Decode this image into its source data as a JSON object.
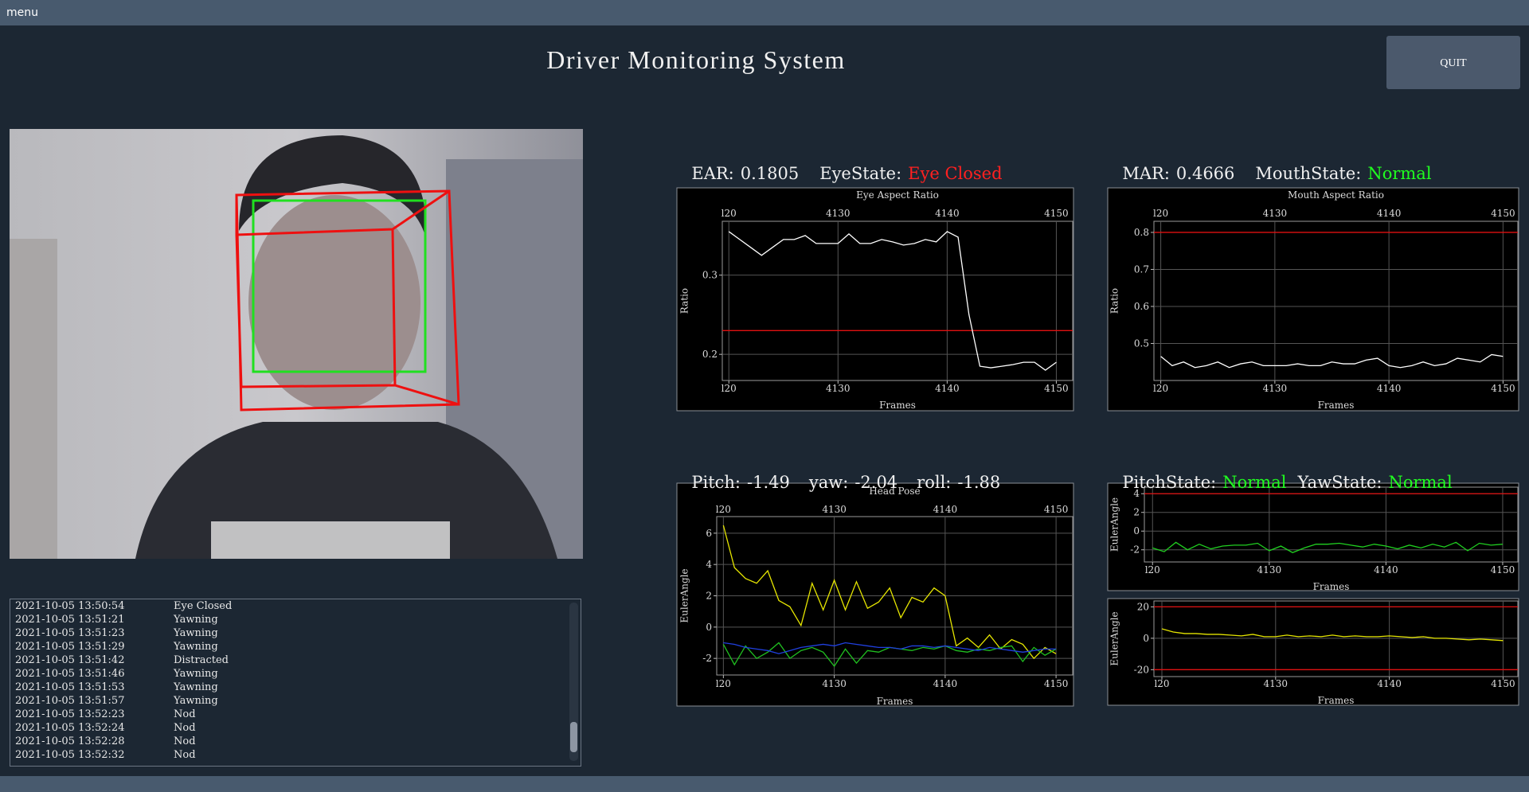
{
  "menu": "menu",
  "header": {
    "title": "Driver Monitoring System",
    "quit_button": "QUIT"
  },
  "eye_status": {
    "ear_label": "EAR:",
    "ear": 0.1805,
    "state_label": "EyeState:",
    "state": "Eye Closed"
  },
  "mouth_status": {
    "mar_label": "MAR:",
    "mar": 0.4666,
    "state_label": "MouthState:",
    "state": "Normal"
  },
  "pose_status": {
    "pitch_label": "Pitch:",
    "pitch": -1.49,
    "yaw_label": "yaw:",
    "yaw": -2.04,
    "roll_label": "roll:",
    "roll": -1.88
  },
  "pose_state": {
    "pitch_state_label": "PitchState:",
    "pitch_state": "Normal",
    "yaw_state_label": "YawState:",
    "yaw_state": "Normal"
  },
  "log": {
    "entries": [
      {
        "time": "2021-10-05 13:50:54",
        "event": "Eye Closed"
      },
      {
        "time": "2021-10-05 13:51:21",
        "event": "Yawning"
      },
      {
        "time": "2021-10-05 13:51:23",
        "event": "Yawning"
      },
      {
        "time": "2021-10-05 13:51:29",
        "event": "Yawning"
      },
      {
        "time": "2021-10-05 13:51:42",
        "event": "Distracted"
      },
      {
        "time": "2021-10-05 13:51:46",
        "event": "Yawning"
      },
      {
        "time": "2021-10-05 13:51:53",
        "event": "Yawning"
      },
      {
        "time": "2021-10-05 13:51:57",
        "event": "Yawning"
      },
      {
        "time": "2021-10-05 13:52:23",
        "event": "Nod"
      },
      {
        "time": "2021-10-05 13:52:24",
        "event": "Nod"
      },
      {
        "time": "2021-10-05 13:52:28",
        "event": "Nod"
      },
      {
        "time": "2021-10-05 13:52:32",
        "event": "Nod"
      }
    ]
  },
  "charts": [
    {
      "type": "line",
      "title": "Eye Aspect Ratio",
      "x_label": "Frames",
      "y_label": "Ratio",
      "xlim": [
        4119.4,
        4151.5
      ],
      "ylim": [
        0.167,
        0.368
      ],
      "xticks": [
        {
          "value": 4120,
          "label": "l20"
        },
        4130,
        4140,
        4150
      ],
      "yticks": [
        0.2,
        0.3
      ],
      "thresholds": [
        0.23
      ],
      "threshold_color": "#e01010",
      "x": [
        4120,
        4121,
        4122,
        4123,
        4124,
        4125,
        4126,
        4127,
        4128,
        4129,
        4130,
        4131,
        4132,
        4133,
        4134,
        4135,
        4136,
        4137,
        4138,
        4139,
        4140,
        4141,
        4142,
        4143,
        4144,
        4145,
        4146,
        4147,
        4148,
        4149,
        4150
      ],
      "series": [
        {
          "color": "#ffffff",
          "values": [
            0.355,
            0.345,
            0.335,
            0.325,
            0.335,
            0.345,
            0.345,
            0.35,
            0.34,
            0.34,
            0.34,
            0.352,
            0.34,
            0.34,
            0.345,
            0.342,
            0.338,
            0.34,
            0.345,
            0.342,
            0.355,
            0.348,
            0.25,
            0.185,
            0.183,
            0.185,
            0.187,
            0.19,
            0.19,
            0.18,
            0.19
          ]
        }
      ]
    },
    {
      "type": "line",
      "title": "Mouth Aspect Ratio",
      "x_label": "Frames",
      "y_label": "Ratio",
      "xlim": [
        4119.4,
        4151.3
      ],
      "ylim": [
        0.4,
        0.83
      ],
      "xticks": [
        {
          "value": 4120,
          "label": "l20"
        },
        4130,
        4140,
        4150
      ],
      "yticks": [
        0.5,
        0.6,
        0.7,
        0.8
      ],
      "thresholds": [
        0.8
      ],
      "threshold_color": "#e01010",
      "x": [
        4120,
        4121,
        4122,
        4123,
        4124,
        4125,
        4126,
        4127,
        4128,
        4129,
        4130,
        4131,
        4132,
        4133,
        4134,
        4135,
        4136,
        4137,
        4138,
        4139,
        4140,
        4141,
        4142,
        4143,
        4144,
        4145,
        4146,
        4147,
        4148,
        4149,
        4150
      ],
      "series": [
        {
          "color": "#ffffff",
          "values": [
            0.465,
            0.44,
            0.45,
            0.435,
            0.44,
            0.45,
            0.435,
            0.445,
            0.45,
            0.44,
            0.44,
            0.44,
            0.445,
            0.44,
            0.44,
            0.45,
            0.445,
            0.445,
            0.455,
            0.46,
            0.44,
            0.435,
            0.44,
            0.45,
            0.44,
            0.445,
            0.46,
            0.455,
            0.45,
            0.47,
            0.465
          ]
        }
      ]
    },
    {
      "type": "line",
      "title": "Head Pose",
      "x_label": "Frames",
      "y_label": "EulerAngle",
      "xlim": [
        4119.4,
        4151.5
      ],
      "ylim": [
        -3.06,
        7.06
      ],
      "xticks": [
        {
          "value": 4120,
          "label": "l20"
        },
        4130,
        4140,
        4150
      ],
      "yticks": [
        -2,
        0,
        2,
        4,
        6
      ],
      "x": [
        4120,
        4121,
        4122,
        4123,
        4124,
        4125,
        4126,
        4127,
        4128,
        4129,
        4130,
        4131,
        4132,
        4133,
        4134,
        4135,
        4136,
        4137,
        4138,
        4139,
        4140,
        4141,
        4142,
        4143,
        4144,
        4145,
        4146,
        4147,
        4148,
        4149,
        4150
      ],
      "series": [
        {
          "color": "#e6e600",
          "values": [
            6.5,
            3.8,
            3.1,
            2.8,
            3.6,
            1.7,
            1.3,
            0.1,
            2.8,
            1.1,
            3.0,
            1.1,
            2.9,
            1.2,
            1.6,
            2.5,
            0.6,
            1.9,
            1.6,
            2.5,
            2.0,
            -1.2,
            -0.7,
            -1.3,
            -0.5,
            -1.4,
            -0.8,
            -1.1,
            -2.0,
            -1.3,
            -1.7
          ]
        },
        {
          "color": "#20c020",
          "values": [
            -1.1,
            -2.4,
            -1.2,
            -2.0,
            -1.6,
            -1.0,
            -2.0,
            -1.5,
            -1.3,
            -1.6,
            -2.5,
            -1.4,
            -2.3,
            -1.5,
            -1.6,
            -1.3,
            -1.4,
            -1.5,
            -1.3,
            -1.4,
            -1.2,
            -1.5,
            -1.6,
            -1.4,
            -1.5,
            -1.3,
            -1.2,
            -2.2,
            -1.3,
            -1.8,
            -1.4
          ]
        },
        {
          "color": "#2040e0",
          "values": [
            -1.0,
            -1.1,
            -1.3,
            -1.4,
            -1.5,
            -1.7,
            -1.5,
            -1.3,
            -1.2,
            -1.1,
            -1.2,
            -1.0,
            -1.1,
            -1.2,
            -1.3,
            -1.3,
            -1.4,
            -1.2,
            -1.2,
            -1.3,
            -1.2,
            -1.3,
            -1.4,
            -1.5,
            -1.3,
            -1.4,
            -1.5,
            -1.6,
            -1.5,
            -1.4,
            -1.4
          ]
        }
      ]
    },
    {
      "type": "line",
      "x_label": "Frames",
      "y_label": "EulerAngle",
      "xlim": [
        4119.3,
        4151.3
      ],
      "ylim": [
        -3.3,
        4.7
      ],
      "xticks": [
        {
          "value": 4120,
          "label": "l20"
        },
        4130,
        4140,
        4150
      ],
      "yticks": [
        -2,
        0,
        2,
        4
      ],
      "thresholds": [
        4
      ],
      "threshold_color": "#e01010",
      "x": [
        4120,
        4121,
        4122,
        4123,
        4124,
        4125,
        4126,
        4127,
        4128,
        4129,
        4130,
        4131,
        4132,
        4133,
        4134,
        4135,
        4136,
        4137,
        4138,
        4139,
        4140,
        4141,
        4142,
        4143,
        4144,
        4145,
        4146,
        4147,
        4148,
        4149,
        4150
      ],
      "series": [
        {
          "color": "#20d020",
          "values": [
            -1.8,
            -2.2,
            -1.2,
            -2.0,
            -1.4,
            -1.9,
            -1.6,
            -1.5,
            -1.5,
            -1.3,
            -2.1,
            -1.6,
            -2.3,
            -1.8,
            -1.4,
            -1.4,
            -1.3,
            -1.5,
            -1.7,
            -1.4,
            -1.6,
            -1.9,
            -1.5,
            -1.8,
            -1.4,
            -1.7,
            -1.2,
            -2.1,
            -1.3,
            -1.5,
            -1.4
          ]
        }
      ]
    },
    {
      "type": "line",
      "x_label": "Frames",
      "y_label": "EulerAngle",
      "xlim": [
        4119.3,
        4151.3
      ],
      "ylim": [
        -24.4,
        23.75
      ],
      "xticks": [
        {
          "value": 4120,
          "label": "l20"
        },
        4130,
        4140,
        4150
      ],
      "yticks": [
        -20,
        0,
        20
      ],
      "thresholds": [
        20,
        -20
      ],
      "threshold_color": "#e01010",
      "x": [
        4120,
        4121,
        4122,
        4123,
        4124,
        4125,
        4126,
        4127,
        4128,
        4129,
        4130,
        4131,
        4132,
        4133,
        4134,
        4135,
        4136,
        4137,
        4138,
        4139,
        4140,
        4141,
        4142,
        4143,
        4144,
        4145,
        4146,
        4147,
        4148,
        4149,
        4150
      ],
      "series": [
        {
          "color": "#e6e600",
          "values": [
            6,
            4,
            3,
            3,
            2.5,
            2.5,
            2,
            1.5,
            2.5,
            1,
            1,
            2,
            1,
            1.5,
            1,
            2,
            1,
            1.5,
            1,
            1,
            1.5,
            1,
            0.5,
            1,
            0,
            0,
            -0.5,
            -1,
            -0.5,
            -1,
            -1.5
          ]
        }
      ]
    }
  ]
}
